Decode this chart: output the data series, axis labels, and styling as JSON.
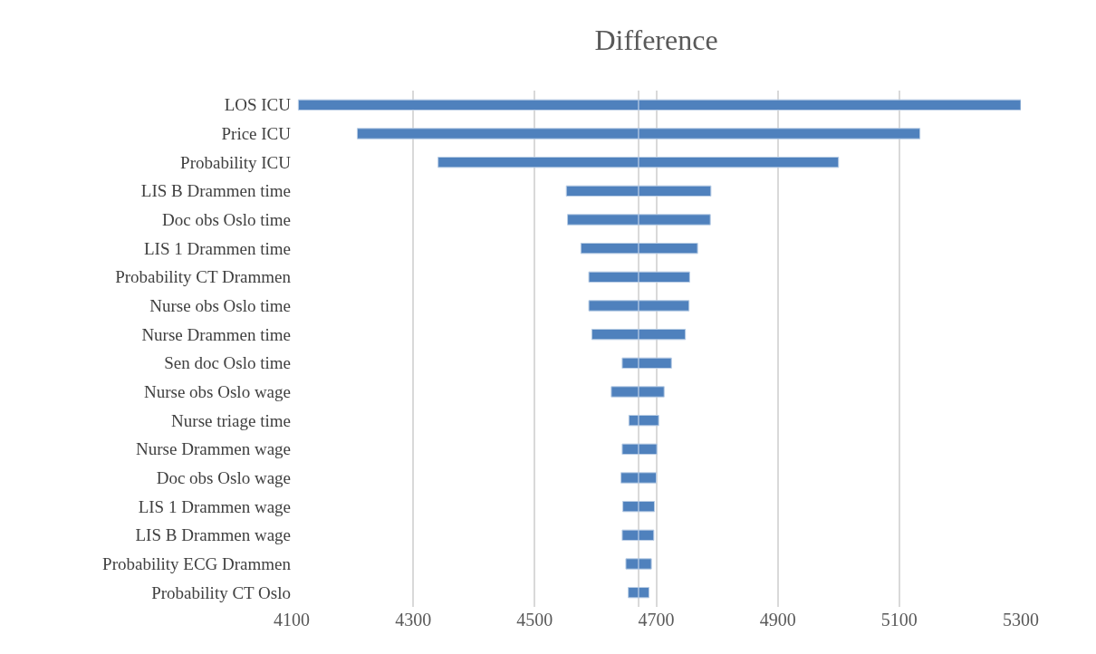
{
  "chart_data": {
    "type": "bar",
    "orientation": "horizontal",
    "title": "Difference",
    "categories": [
      "LOS ICU",
      "Price ICU",
      "Probability ICU",
      "LIS B Drammen time",
      "Doc obs Oslo time",
      "LIS 1 Drammen time",
      "Probability CT Drammen",
      "Nurse obs Oslo time",
      "Nurse Drammen time",
      "Sen doc Oslo time",
      "Nurse obs Oslo wage",
      "Nurse triage time",
      "Nurse Drammen wage",
      "Doc obs Oslo wage",
      "LIS 1 Drammen wage",
      "LIS B Drammen wage",
      "Probability ECG Drammen",
      "Probability CT Oslo"
    ],
    "series": [
      {
        "color": "#4f81bd",
        "base": [
          4111,
          4208,
          4341,
          4552,
          4554,
          4576,
          4589,
          4589,
          4594,
          4644,
          4626,
          4655,
          4644,
          4642,
          4645,
          4644,
          4650,
          4654
        ],
        "values": [
          560,
          463,
          330,
          119,
          117,
          95,
          82,
          82,
          77,
          27,
          45,
          16,
          27,
          29,
          26,
          27,
          21,
          17
        ]
      },
      {
        "color": "#4f81bd",
        "base": [
          4671,
          4671,
          4671,
          4671,
          4671,
          4671,
          4671,
          4671,
          4671,
          4671,
          4671,
          4671,
          4671,
          4671,
          4671,
          4671,
          4671,
          4671
        ],
        "values": [
          629,
          463,
          329,
          119,
          118,
          97,
          84,
          83,
          77,
          54,
          42,
          33,
          30,
          29,
          26,
          25,
          21,
          17
        ]
      }
    ],
    "ref_lines": [
      {
        "axis": "x",
        "value": 4671,
        "color": "#d9d9d9"
      }
    ],
    "xlim": [
      4100,
      5300
    ],
    "xticks": [
      4100,
      4300,
      4500,
      4700,
      4900,
      5100,
      5300
    ],
    "grid": "x"
  }
}
